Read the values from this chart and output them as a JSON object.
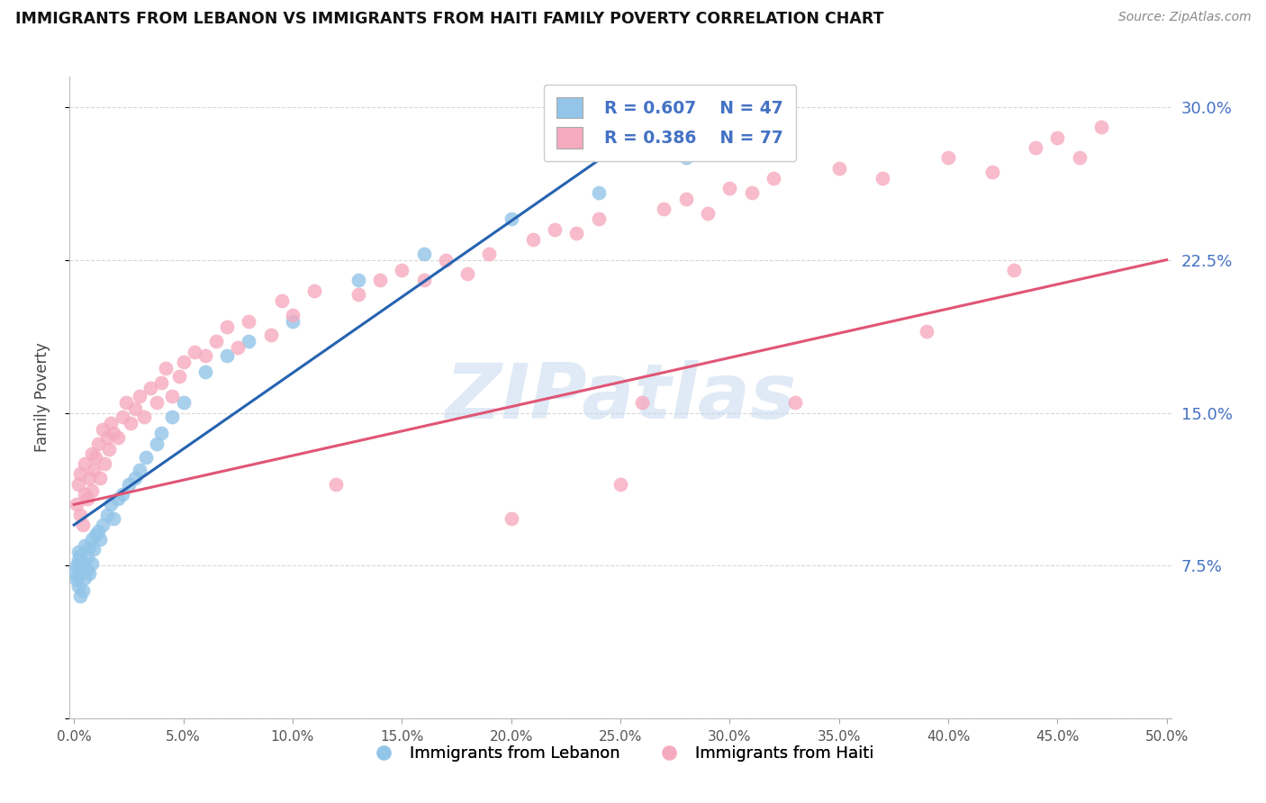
{
  "title": "IMMIGRANTS FROM LEBANON VS IMMIGRANTS FROM HAITI FAMILY POVERTY CORRELATION CHART",
  "source": "Source: ZipAtlas.com",
  "ylabel": "Family Poverty",
  "ylim": [
    0.0,
    0.315
  ],
  "xlim": [
    -0.002,
    0.502
  ],
  "yticks": [
    0.0,
    0.075,
    0.15,
    0.225,
    0.3
  ],
  "ytick_labels": [
    "",
    "7.5%",
    "15.0%",
    "22.5%",
    "30.0%"
  ],
  "xtick_vals": [
    0.0,
    0.05,
    0.1,
    0.15,
    0.2,
    0.25,
    0.3,
    0.35,
    0.4,
    0.45,
    0.5
  ],
  "xtick_labels": [
    "0.0%",
    "5.0%",
    "10.0%",
    "15.0%",
    "20.0%",
    "25.0%",
    "30.0%",
    "35.0%",
    "40.0%",
    "45.0%",
    "50.0%"
  ],
  "legend_r1": "R = 0.607",
  "legend_n1": "N = 47",
  "legend_r2": "R = 0.386",
  "legend_n2": "N = 77",
  "legend_label1": "Immigrants from Lebanon",
  "legend_label2": "Immigrants from Haiti",
  "color_blue": "#93c5e8",
  "color_pink": "#f5aac0",
  "color_line_blue": "#2563b0",
  "color_line_pink": "#e05575",
  "color_text_blue": "#4472c4",
  "color_text_dark": "#1a1a2e",
  "color_yaxis_right": "#4472c4",
  "watermark": "ZIPatlas",
  "watermark_color": "#c5d9f0",
  "background": "#ffffff",
  "grid_color": "#d8d8d8",
  "lebanon_x": [
    0.0005,
    0.001,
    0.001,
    0.0015,
    0.002,
    0.002,
    0.002,
    0.003,
    0.003,
    0.003,
    0.004,
    0.004,
    0.005,
    0.005,
    0.006,
    0.006,
    0.007,
    0.007,
    0.008,
    0.008,
    0.009,
    0.01,
    0.011,
    0.012,
    0.013,
    0.015,
    0.017,
    0.018,
    0.02,
    0.022,
    0.025,
    0.028,
    0.03,
    0.033,
    0.038,
    0.04,
    0.045,
    0.05,
    0.06,
    0.07,
    0.08,
    0.1,
    0.13,
    0.16,
    0.2,
    0.24,
    0.28
  ],
  "lebanon_y": [
    0.072,
    0.068,
    0.075,
    0.07,
    0.065,
    0.078,
    0.082,
    0.06,
    0.074,
    0.08,
    0.063,
    0.076,
    0.069,
    0.085,
    0.073,
    0.079,
    0.071,
    0.084,
    0.076,
    0.088,
    0.083,
    0.09,
    0.092,
    0.088,
    0.095,
    0.1,
    0.105,
    0.098,
    0.108,
    0.11,
    0.115,
    0.118,
    0.122,
    0.128,
    0.135,
    0.14,
    0.148,
    0.155,
    0.17,
    0.178,
    0.185,
    0.195,
    0.215,
    0.228,
    0.245,
    0.258,
    0.275
  ],
  "haiti_x": [
    0.001,
    0.002,
    0.003,
    0.003,
    0.004,
    0.005,
    0.005,
    0.006,
    0.007,
    0.008,
    0.008,
    0.009,
    0.01,
    0.011,
    0.012,
    0.013,
    0.014,
    0.015,
    0.016,
    0.017,
    0.018,
    0.02,
    0.022,
    0.024,
    0.026,
    0.028,
    0.03,
    0.032,
    0.035,
    0.038,
    0.04,
    0.042,
    0.045,
    0.048,
    0.05,
    0.055,
    0.06,
    0.065,
    0.07,
    0.075,
    0.08,
    0.09,
    0.095,
    0.1,
    0.11,
    0.12,
    0.13,
    0.14,
    0.15,
    0.16,
    0.17,
    0.18,
    0.19,
    0.2,
    0.21,
    0.22,
    0.23,
    0.24,
    0.25,
    0.26,
    0.27,
    0.28,
    0.29,
    0.3,
    0.31,
    0.32,
    0.33,
    0.35,
    0.37,
    0.39,
    0.4,
    0.42,
    0.43,
    0.44,
    0.45,
    0.46,
    0.47
  ],
  "haiti_y": [
    0.105,
    0.115,
    0.1,
    0.12,
    0.095,
    0.11,
    0.125,
    0.108,
    0.118,
    0.112,
    0.13,
    0.122,
    0.128,
    0.135,
    0.118,
    0.142,
    0.125,
    0.138,
    0.132,
    0.145,
    0.14,
    0.138,
    0.148,
    0.155,
    0.145,
    0.152,
    0.158,
    0.148,
    0.162,
    0.155,
    0.165,
    0.172,
    0.158,
    0.168,
    0.175,
    0.18,
    0.178,
    0.185,
    0.192,
    0.182,
    0.195,
    0.188,
    0.205,
    0.198,
    0.21,
    0.115,
    0.208,
    0.215,
    0.22,
    0.215,
    0.225,
    0.218,
    0.228,
    0.098,
    0.235,
    0.24,
    0.238,
    0.245,
    0.115,
    0.155,
    0.25,
    0.255,
    0.248,
    0.26,
    0.258,
    0.265,
    0.155,
    0.27,
    0.265,
    0.19,
    0.275,
    0.268,
    0.22,
    0.28,
    0.285,
    0.275,
    0.29
  ],
  "blue_line_x0": 0.0,
  "blue_line_y0": 0.095,
  "blue_line_x1": 0.255,
  "blue_line_y1": 0.285,
  "pink_line_x0": 0.0,
  "pink_line_y0": 0.105,
  "pink_line_x1": 0.5,
  "pink_line_y1": 0.225
}
